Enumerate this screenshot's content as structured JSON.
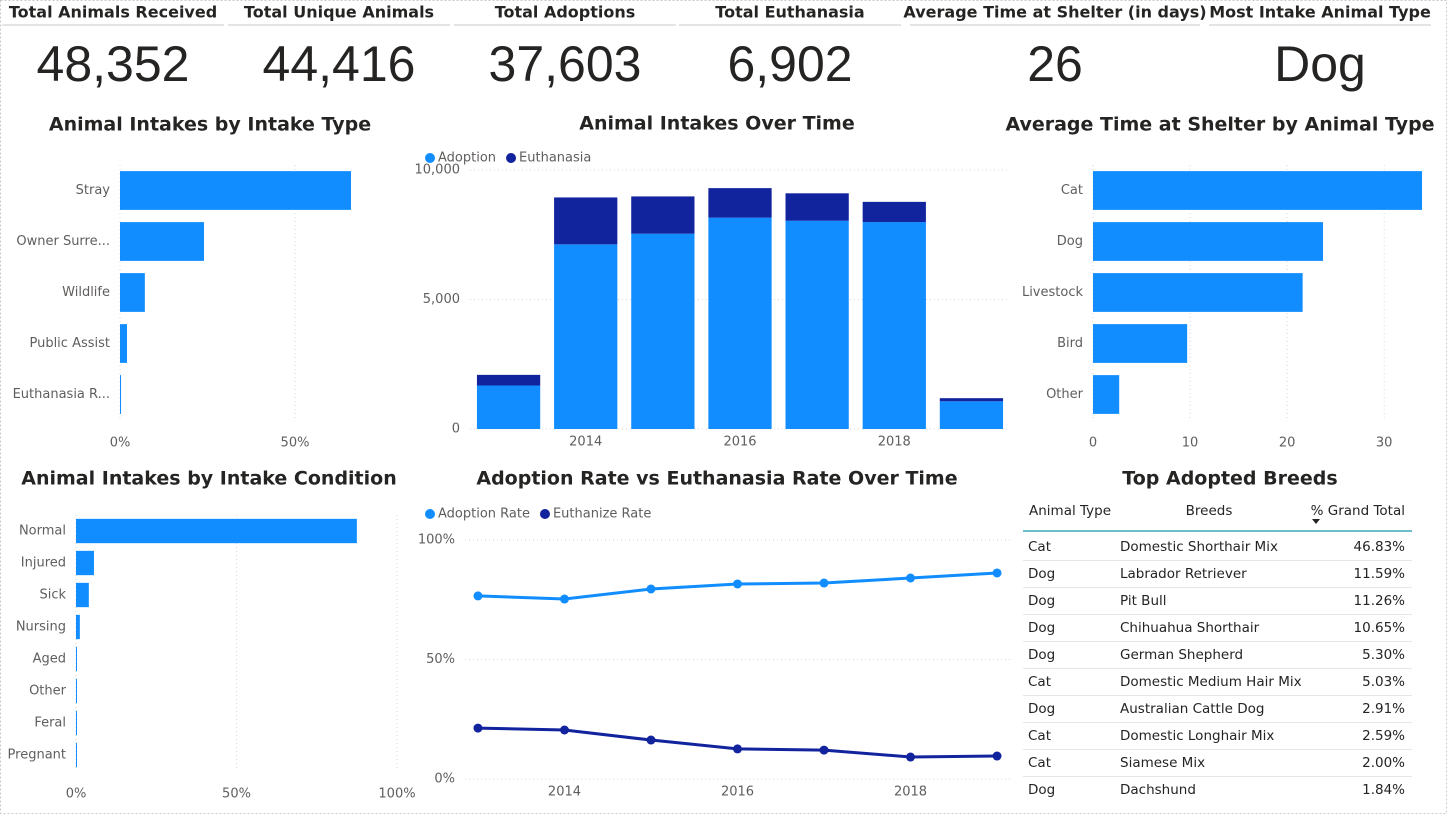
{
  "cards": [
    {
      "label": "Total Animals Received",
      "value": "48,352"
    },
    {
      "label": "Total Unique Animals",
      "value": "44,416"
    },
    {
      "label": "Total Adoptions",
      "value": "37,603"
    },
    {
      "label": "Total Euthanasia",
      "value": "6,902"
    },
    {
      "label": "Average Time at Shelter (in days)",
      "value": "26"
    },
    {
      "label": "Most Intake Animal Type",
      "value": "Dog"
    }
  ],
  "chart_data": [
    {
      "type": "hbar",
      "title": "Animal Intakes by Intake Type",
      "categories": [
        "Stray",
        "Owner Surre...",
        "Wildlife",
        "Public Assist",
        "Euthanasia R..."
      ],
      "values": [
        66,
        24,
        7.1,
        2,
        0.3
      ],
      "color": "#118DFF",
      "xlim": [
        0,
        80
      ],
      "xticks": [
        {
          "value": 0,
          "label": "0%"
        },
        {
          "value": 50,
          "label": "50%"
        }
      ],
      "grid": true
    },
    {
      "type": "stacked_bar",
      "title": "Animal Intakes Over Time",
      "x": [
        2013,
        2014,
        2015,
        2016,
        2017,
        2018,
        2019
      ],
      "series": [
        {
          "name": "Adoption",
          "color": "#118DFF",
          "values": [
            1680,
            7130,
            7540,
            8160,
            8040,
            7990,
            1070
          ]
        },
        {
          "name": "Euthanasia",
          "color": "#12239E",
          "values": [
            410,
            1810,
            1440,
            1140,
            1060,
            780,
            120
          ]
        }
      ],
      "xlim": [
        2012.5,
        2019.5
      ],
      "xticks": [
        2014,
        2016,
        2018
      ],
      "ylim": [
        0,
        10000
      ],
      "yticks": [
        0,
        {
          "value": 5000,
          "label": "5,000"
        },
        {
          "value": 10000,
          "label": "10,000"
        }
      ],
      "legend": "top-left",
      "grid": true
    },
    {
      "type": "hbar",
      "title": "Average Time at Shelter by Animal Type",
      "categories": [
        "Cat",
        "Dog",
        "Livestock",
        "Bird",
        "Other"
      ],
      "values": [
        33.9,
        23.7,
        21.6,
        9.7,
        2.7
      ],
      "color": "#118DFF",
      "xlim": [
        0,
        34
      ],
      "xticks": [
        0,
        10,
        20,
        30
      ],
      "grid": true
    },
    {
      "type": "hbar",
      "title": "Animal Intakes by Intake Condition",
      "categories": [
        "Normal",
        "Injured",
        "Sick",
        "Nursing",
        "Aged",
        "Other",
        "Feral",
        "Pregnant"
      ],
      "values": [
        87.5,
        5.6,
        4,
        1.2,
        0.3,
        0.2,
        0.2,
        0.1
      ],
      "color": "#118DFF",
      "xlim": [
        0,
        100
      ],
      "xticks": [
        {
          "value": 0,
          "label": "0%"
        },
        {
          "value": 50,
          "label": "50%"
        },
        {
          "value": 100,
          "label": "100%"
        }
      ],
      "grid": true
    },
    {
      "type": "line",
      "title": "Adoption Rate vs Euthanasia Rate Over Time",
      "x": [
        2013,
        2014,
        2015,
        2016,
        2017,
        2018,
        2019
      ],
      "series": [
        {
          "name": "Adoption Rate",
          "color": "#118DFF",
          "values": [
            76.6,
            75.3,
            79.5,
            81.6,
            82,
            84.1,
            86.2
          ]
        },
        {
          "name": "Euthanize Rate",
          "color": "#12239E",
          "values": [
            21.3,
            20.5,
            16.3,
            12.6,
            12.1,
            9.2,
            9.6
          ]
        }
      ],
      "xlim": [
        2012.85,
        2019.15
      ],
      "xticks": [
        2014,
        2016,
        2018
      ],
      "ylim": [
        0,
        100
      ],
      "yticks": [
        {
          "value": 0,
          "label": "0%"
        },
        {
          "value": 50,
          "label": "50%"
        },
        {
          "value": 100,
          "label": "100%"
        }
      ],
      "legend": "top-left",
      "grid": true
    }
  ],
  "table": {
    "title": "Top Adopted Breeds",
    "columns": [
      "Animal Type",
      "Breeds",
      "% Grand Total"
    ],
    "rows": [
      [
        "Cat",
        "Domestic Shorthair Mix",
        "46.83%"
      ],
      [
        "Dog",
        "Labrador Retriever",
        "11.59%"
      ],
      [
        "Dog",
        "Pit Bull",
        "11.26%"
      ],
      [
        "Dog",
        "Chihuahua Shorthair",
        "10.65%"
      ],
      [
        "Dog",
        "German Shepherd",
        "5.30%"
      ],
      [
        "Cat",
        "Domestic Medium Hair Mix",
        "5.03%"
      ],
      [
        "Dog",
        "Australian Cattle Dog",
        "2.91%"
      ],
      [
        "Cat",
        "Domestic Longhair Mix",
        "2.59%"
      ],
      [
        "Cat",
        "Siamese Mix",
        "2.00%"
      ],
      [
        "Dog",
        "Dachshund",
        "1.84%"
      ]
    ]
  }
}
